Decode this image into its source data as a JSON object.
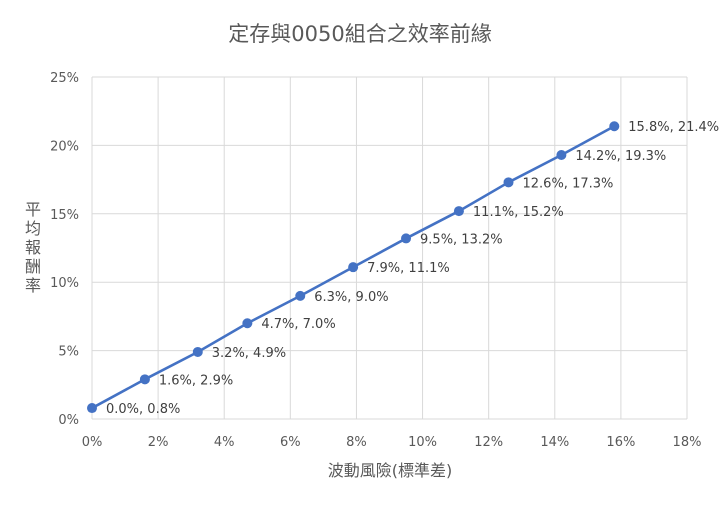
{
  "chart_data": {
    "type": "scatter",
    "title": "定存與0050組合之效率前緣",
    "xlabel": "波動風險(標準差)",
    "ylabel": "平均報酬率",
    "xlim": [
      0,
      18
    ],
    "ylim": [
      0,
      25
    ],
    "x_ticks": [
      "0%",
      "2%",
      "4%",
      "6%",
      "8%",
      "10%",
      "12%",
      "14%",
      "16%",
      "18%"
    ],
    "y_ticks": [
      "0%",
      "5%",
      "10%",
      "15%",
      "20%",
      "25%"
    ],
    "grid": true,
    "legend": "none",
    "line_color": "#4472C4",
    "series": [
      {
        "x": [
          0.0,
          1.6,
          3.2,
          4.7,
          6.3,
          7.9,
          9.5,
          11.1,
          12.6,
          14.2,
          15.8
        ],
        "y": [
          0.8,
          2.9,
          4.9,
          7.0,
          9.0,
          11.1,
          13.2,
          15.2,
          17.3,
          19.3,
          21.4
        ],
        "labels": [
          "0.0%, 0.8%",
          "1.6%, 2.9%",
          "3.2%, 4.9%",
          "4.7%, 7.0%",
          "6.3%, 9.0%",
          "7.9%, 11.1%",
          "9.5%, 13.2%",
          "11.1%, 15.2%",
          "12.6%, 17.3%",
          "14.2%, 19.3%",
          "15.8%, 21.4%"
        ]
      }
    ]
  }
}
